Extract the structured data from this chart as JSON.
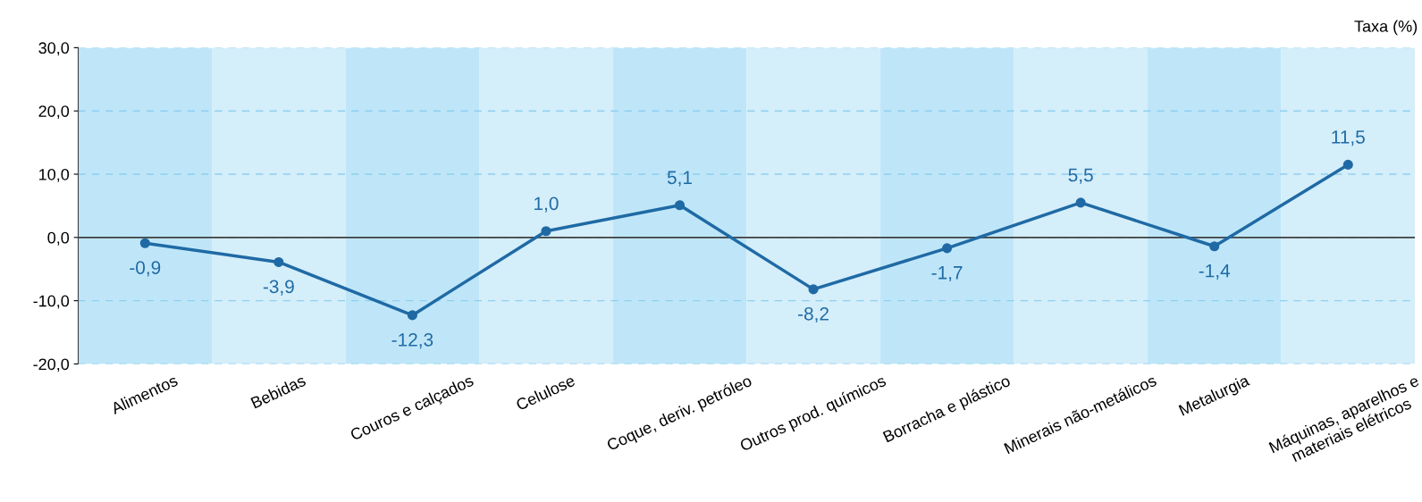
{
  "chart_data": {
    "type": "line",
    "ylabel": "Taxa (%)",
    "categories": [
      "Alimentos",
      "Bebidas",
      "Couros e calçados",
      "Celulose",
      "Coque, deriv. petróleo",
      "Outros prod. químicos",
      "Borracha e plástico",
      "Minerais não-metálicos",
      "Metalurgia",
      "Máquinas, aparelhos e\nmateriais elétricos"
    ],
    "series": [
      {
        "color": "#1f6aa5",
        "values": [
          -0.9,
          -3.9,
          -12.3,
          1.0,
          5.1,
          -8.2,
          -1.7,
          5.5,
          -1.4,
          11.5
        ],
        "value_labels": [
          "-0,9",
          "-3,9",
          "-12,3",
          "1,0",
          "5,1",
          "-8,2",
          "-1,7",
          "5,5",
          "-1,4",
          "11,5"
        ]
      }
    ],
    "ylim": [
      -20,
      30
    ],
    "yticks": [
      {
        "value": -20,
        "label": "-20,0"
      },
      {
        "value": -10,
        "label": "-10,0"
      },
      {
        "value": 0,
        "label": "0,0"
      },
      {
        "value": 10,
        "label": "10,0"
      },
      {
        "value": 20,
        "label": "20,0"
      },
      {
        "value": 30,
        "label": "30,0"
      }
    ],
    "grid": "y",
    "marker": "circle",
    "line_style": "solid",
    "ref_lines": [
      {
        "axis": "y",
        "value": 0,
        "color": "#404040"
      }
    ],
    "bands": [
      {
        "axis": "x",
        "from": "Alimentos",
        "to": "Alimentos",
        "color": "#bfe6f8"
      },
      {
        "axis": "x",
        "from": "Bebidas",
        "to": "Bebidas",
        "color": "#d4eefa"
      },
      {
        "axis": "x",
        "from": "Couros e calçados",
        "to": "Couros e calçados",
        "color": "#bfe6f8"
      },
      {
        "axis": "x",
        "from": "Celulose",
        "to": "Celulose",
        "color": "#d4eefa"
      },
      {
        "axis": "x",
        "from": "Coque, deriv. petróleo",
        "to": "Coque, deriv. petróleo",
        "color": "#bfe6f8"
      },
      {
        "axis": "x",
        "from": "Outros prod. químicos",
        "to": "Outros prod. químicos",
        "color": "#d4eefa"
      },
      {
        "axis": "x",
        "from": "Borracha e plástico",
        "to": "Borracha e plástico",
        "color": "#bfe6f8"
      },
      {
        "axis": "x",
        "from": "Minerais não-metálicos",
        "to": "Minerais não-metálicos",
        "color": "#d4eefa"
      },
      {
        "axis": "x",
        "from": "Metalurgia",
        "to": "Metalurgia",
        "color": "#bfe6f8"
      },
      {
        "axis": "x",
        "from": "Máquinas, aparelhos e\nmateriais elétricos",
        "to": "Máquinas, aparelhos e\nmateriais elétricos",
        "color": "#d4eefa"
      }
    ]
  }
}
